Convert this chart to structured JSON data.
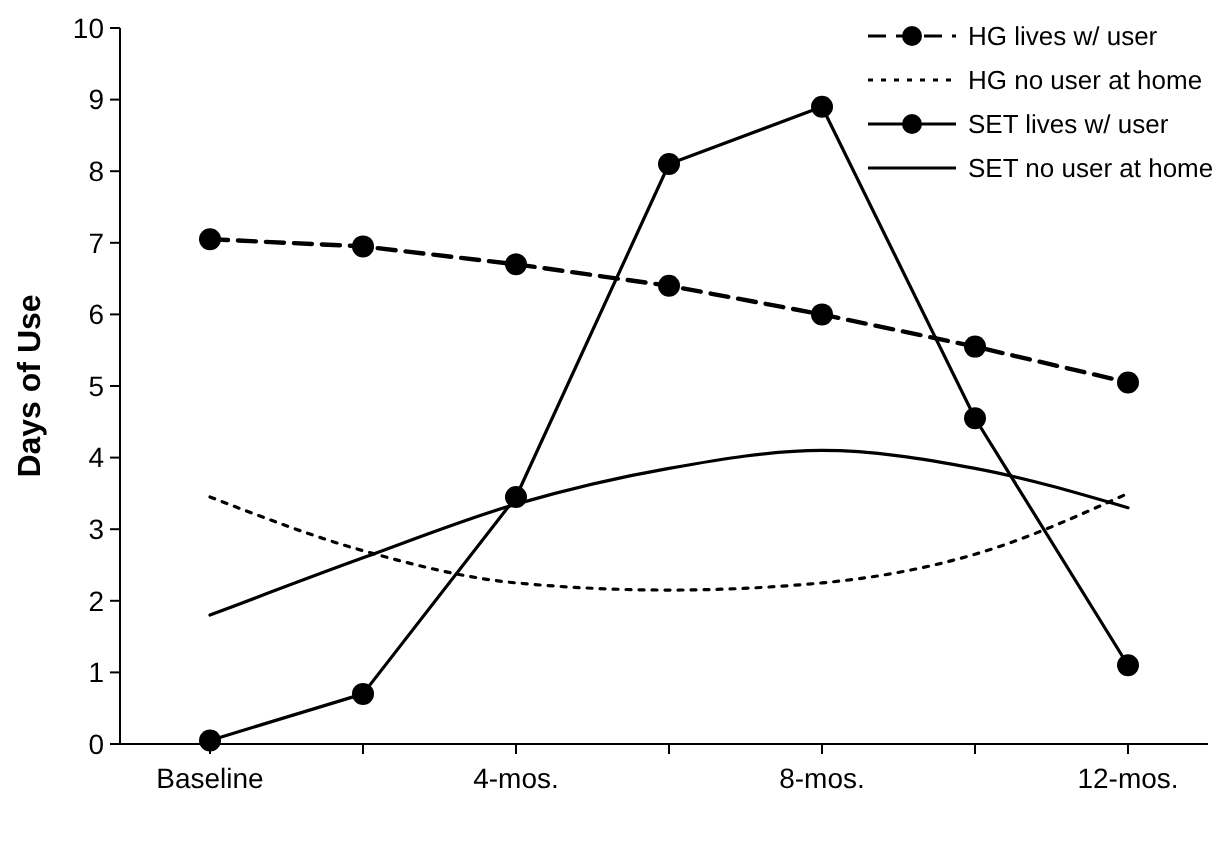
{
  "chart_data": {
    "type": "line",
    "ylabel": "Days of Use",
    "categories": [
      "Baseline",
      null,
      "4-mos.",
      null,
      "8-mos.",
      null,
      "12-mos."
    ],
    "ylim": [
      0,
      10
    ],
    "yticks": [
      0,
      1,
      2,
      3,
      4,
      5,
      6,
      7,
      8,
      9,
      10
    ],
    "grid": false,
    "legend": "top right",
    "series": [
      {
        "name": "HG lives w/ user",
        "color": "#000000",
        "line_style": "dashed",
        "marker": "circle",
        "values": [
          7.05,
          6.95,
          6.7,
          6.4,
          6.0,
          5.55,
          5.05
        ]
      },
      {
        "name": "HG no user at home",
        "color": "#000000",
        "line_style": "dotted",
        "marker": "none",
        "values": [
          3.45,
          2.7,
          2.25,
          2.15,
          2.25,
          2.65,
          3.5
        ]
      },
      {
        "name": "SET lives w/ user",
        "color": "#000000",
        "line_style": "solid",
        "marker": "circle",
        "values": [
          0.05,
          0.7,
          3.45,
          8.1,
          8.9,
          4.55,
          1.1
        ]
      },
      {
        "name": "SET no user at home",
        "color": "#000000",
        "line_style": "solid",
        "marker": "none",
        "values": [
          1.8,
          2.6,
          3.35,
          3.85,
          4.1,
          3.85,
          3.3
        ]
      }
    ]
  }
}
